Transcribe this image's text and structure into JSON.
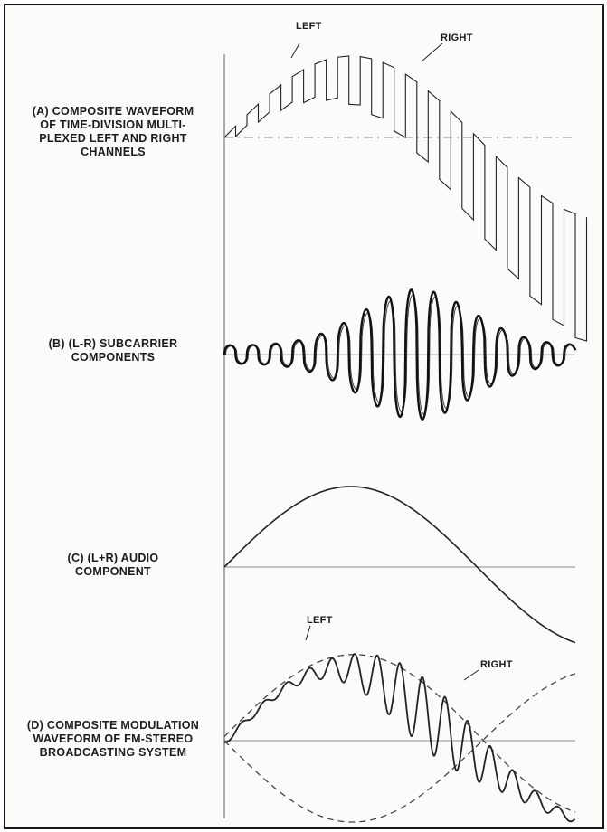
{
  "panels": {
    "a": {
      "lines": [
        "(A) COMPOSITE WAVEFORM",
        "OF TIME-DIVISION MULTI-",
        "PLEXED LEFT AND RIGHT",
        "CHANNELS"
      ]
    },
    "b": {
      "lines": [
        "(B) (L-R) SUBCARRIER",
        "COMPONENTS"
      ]
    },
    "c": {
      "lines": [
        "(C) (L+R) AUDIO",
        "COMPONENT"
      ]
    },
    "d": {
      "lines": [
        "(D) COMPOSITE MODULATION",
        "WAVEFORM OF FM-STEREO",
        "BROADCASTING SYSTEM"
      ]
    }
  },
  "callouts": {
    "a_left": "LEFT",
    "a_right": "RIGHT",
    "d_left": "LEFT",
    "d_right": "RIGHT"
  },
  "colors": {
    "ink": "#1c1c1c",
    "axis": "#777777",
    "background": "#fbfbf9"
  }
}
